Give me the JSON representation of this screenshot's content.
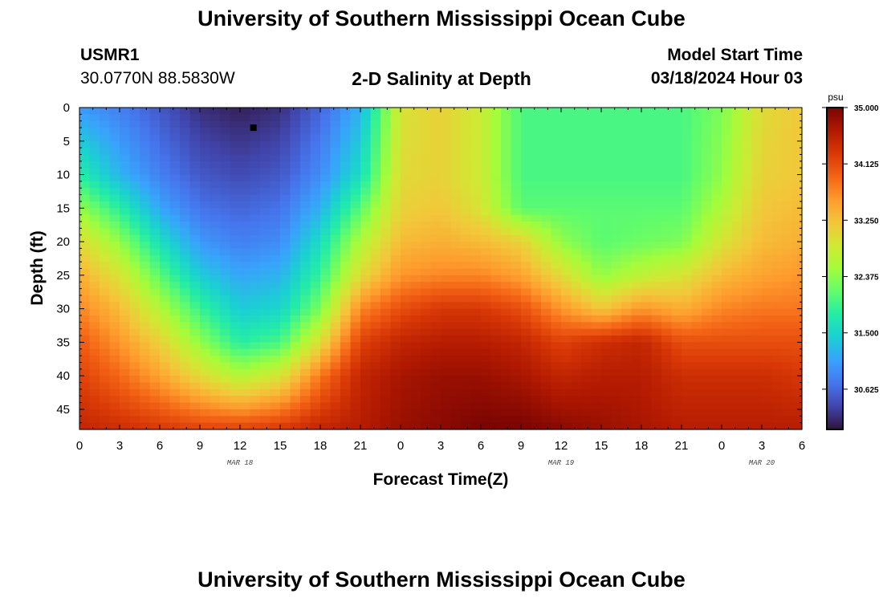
{
  "page_title": "University of Southern Mississippi Ocean Cube",
  "footer_title": "University of Southern Mississippi Ocean Cube",
  "station": {
    "id": "USMR1",
    "coords": "30.0770N  88.5830W"
  },
  "model": {
    "label": "Model Start Time",
    "time": "03/18/2024 Hour 03"
  },
  "chart_data": {
    "type": "heatmap",
    "title": "2-D Salinity at Depth",
    "xlabel": "Forecast Time(Z)",
    "ylabel": "Depth (ft)",
    "x_range_hours": [
      0,
      54
    ],
    "ylim": [
      0,
      48
    ],
    "x_ticks": [
      {
        "hour": 0,
        "label": "0"
      },
      {
        "hour": 3,
        "label": "3"
      },
      {
        "hour": 6,
        "label": "6"
      },
      {
        "hour": 9,
        "label": "9"
      },
      {
        "hour": 12,
        "label": "12"
      },
      {
        "hour": 15,
        "label": "15"
      },
      {
        "hour": 18,
        "label": "18"
      },
      {
        "hour": 21,
        "label": "21"
      },
      {
        "hour": 24,
        "label": "0"
      },
      {
        "hour": 27,
        "label": "3"
      },
      {
        "hour": 30,
        "label": "6"
      },
      {
        "hour": 33,
        "label": "9"
      },
      {
        "hour": 36,
        "label": "12"
      },
      {
        "hour": 39,
        "label": "15"
      },
      {
        "hour": 42,
        "label": "18"
      },
      {
        "hour": 45,
        "label": "21"
      },
      {
        "hour": 48,
        "label": "0"
      },
      {
        "hour": 51,
        "label": "3"
      },
      {
        "hour": 54,
        "label": "6"
      }
    ],
    "date_labels": [
      {
        "hour": 12,
        "label": "MAR 18"
      },
      {
        "hour": 36,
        "label": "MAR 19"
      },
      {
        "hour": 51,
        "label": "MAR 20"
      }
    ],
    "y_ticks": [
      0,
      5,
      10,
      15,
      20,
      25,
      30,
      35,
      40,
      45
    ],
    "colorbar": {
      "unit": "psu",
      "min": 30.0,
      "max": 35.0,
      "labels": [
        "35.000",
        "34.125",
        "33.250",
        "32.375",
        "31.500",
        "30.625"
      ],
      "colors": [
        "#30123b",
        "#4145ab",
        "#4675ed",
        "#39a2fc",
        "#1bcfd4",
        "#24eca6",
        "#61fc6c",
        "#a4fc3b",
        "#d1e834",
        "#f3c63a",
        "#fe9b2d",
        "#f36315",
        "#d93806",
        "#b11901",
        "#7a0402"
      ]
    },
    "marker": {
      "hour": 13,
      "depth": 3
    },
    "depth_levels": [
      0,
      10,
      15,
      20,
      25,
      30,
      35,
      40,
      48
    ],
    "time_hours": [
      0,
      3,
      6,
      9,
      12,
      15,
      18,
      21,
      24,
      27,
      30,
      33,
      36,
      39,
      42,
      45,
      48,
      51,
      54
    ],
    "salinity_grid": [
      [
        31.0,
        30.8,
        30.5,
        30.2,
        30.1,
        30.2,
        30.6,
        31.2,
        32.9,
        33.1,
        32.8,
        32.0,
        32.0,
        32.0,
        32.0,
        32.0,
        32.3,
        33.0,
        33.2
      ],
      [
        31.8,
        31.2,
        30.8,
        30.5,
        30.4,
        30.5,
        30.9,
        31.6,
        33.0,
        33.1,
        32.8,
        32.0,
        32.0,
        32.0,
        32.0,
        32.0,
        32.4,
        33.1,
        33.2
      ],
      [
        32.4,
        31.8,
        31.1,
        30.7,
        30.6,
        30.7,
        31.2,
        32.1,
        33.1,
        33.2,
        32.9,
        32.1,
        32.1,
        32.1,
        32.1,
        32.1,
        32.6,
        33.2,
        33.3
      ],
      [
        33.0,
        32.4,
        31.6,
        31.0,
        30.8,
        30.9,
        31.6,
        32.6,
        33.3,
        33.4,
        33.3,
        33.1,
        32.4,
        32.1,
        32.2,
        32.3,
        32.9,
        33.3,
        33.4
      ],
      [
        33.4,
        32.9,
        32.1,
        31.4,
        31.1,
        31.2,
        31.9,
        33.0,
        33.6,
        33.7,
        33.7,
        33.5,
        33.0,
        32.4,
        32.7,
        32.9,
        33.3,
        33.5,
        33.6
      ],
      [
        33.7,
        33.3,
        32.6,
        31.9,
        31.4,
        31.5,
        32.3,
        33.7,
        34.1,
        34.3,
        34.3,
        34.1,
        33.6,
        33.2,
        33.6,
        33.4,
        33.7,
        33.8,
        33.8
      ],
      [
        34.0,
        33.6,
        33.1,
        32.4,
        31.8,
        32.0,
        33.0,
        34.2,
        34.5,
        34.6,
        34.6,
        34.5,
        34.2,
        34.4,
        34.5,
        34.1,
        34.1,
        34.1,
        34.1
      ],
      [
        34.2,
        33.9,
        33.5,
        33.0,
        32.6,
        32.9,
        33.8,
        34.5,
        34.7,
        34.8,
        34.8,
        34.7,
        34.5,
        34.6,
        34.6,
        34.4,
        34.4,
        34.4,
        34.3
      ],
      [
        34.5,
        34.4,
        34.3,
        34.2,
        34.2,
        34.3,
        34.5,
        34.6,
        34.8,
        34.9,
        35.0,
        35.0,
        34.9,
        34.8,
        34.7,
        34.6,
        34.6,
        34.6,
        34.6
      ]
    ]
  }
}
